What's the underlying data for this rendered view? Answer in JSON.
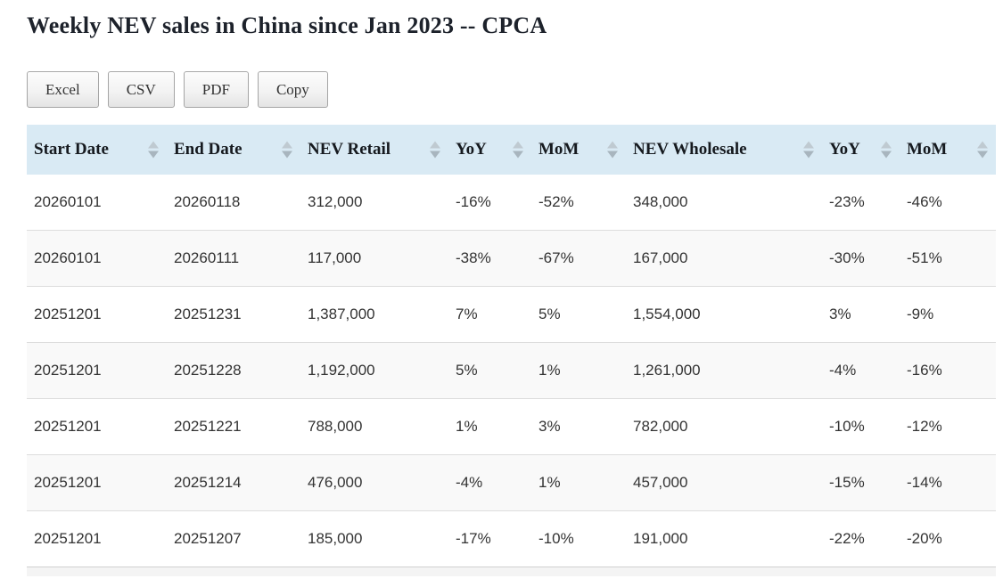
{
  "page": {
    "title": "Weekly NEV sales in China since Jan 2023 -- CPCA"
  },
  "toolbar": {
    "excel_label": "Excel",
    "csv_label": "CSV",
    "pdf_label": "PDF",
    "copy_label": "Copy"
  },
  "table": {
    "columns": [
      "Start Date",
      "End Date",
      "NEV Retail",
      "YoY",
      "MoM",
      "NEV Wholesale",
      "YoY",
      "MoM"
    ],
    "sort_state": "unsorted",
    "rows": [
      [
        "20260101",
        "20260118",
        "312,000",
        "-16%",
        "-52%",
        "348,000",
        "-23%",
        "-46%"
      ],
      [
        "20260101",
        "20260111",
        "117,000",
        "-38%",
        "-67%",
        "167,000",
        "-30%",
        "-51%"
      ],
      [
        "20251201",
        "20251231",
        "1,387,000",
        "7%",
        "5%",
        "1,554,000",
        "3%",
        "-9%"
      ],
      [
        "20251201",
        "20251228",
        "1,192,000",
        "5%",
        "1%",
        "1,261,000",
        "-4%",
        "-16%"
      ],
      [
        "20251201",
        "20251221",
        "788,000",
        "1%",
        "3%",
        "782,000",
        "-10%",
        "-12%"
      ],
      [
        "20251201",
        "20251214",
        "476,000",
        "-4%",
        "1%",
        "457,000",
        "-15%",
        "-14%"
      ],
      [
        "20251201",
        "20251207",
        "185,000",
        "-17%",
        "-10%",
        "191,000",
        "-22%",
        "-20%"
      ]
    ]
  },
  "colors": {
    "header_bg": "#d9eaf4",
    "stripe_bg": "#f9f9f9",
    "row_border": "#dddddd",
    "sort_arrow_up": "#bfcad1",
    "sort_arrow_down": "#a8b5be",
    "body_text": "#333333",
    "title_text": "#1d222b"
  }
}
